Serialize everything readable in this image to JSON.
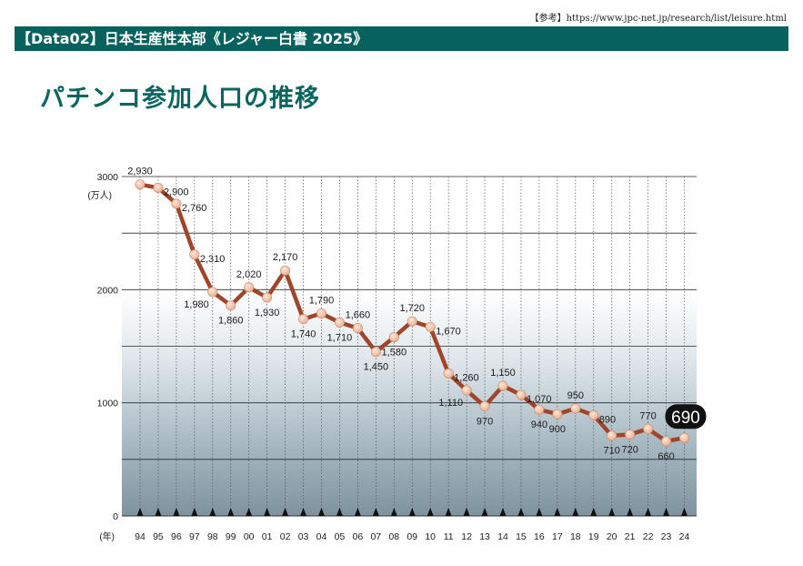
{
  "header": {
    "reference": "【参考】https://www.jpc-net.jp/research/list/leisure.html",
    "banner": "【Data02】日本生産性本部《レジャー白書 2025》",
    "page_title": "パチンコ参加人口の推移"
  },
  "colors": {
    "banner_bg": "#07625e",
    "title": "#0b6660",
    "line": "#a0442a",
    "marker": "#f2c4a8",
    "highlight_bg": "#111111"
  },
  "chart_data": {
    "type": "line",
    "title": "",
    "xlabel": "(年)",
    "ylabel": "(万人)",
    "ylim": [
      0,
      3000
    ],
    "yticks": [
      "0",
      "1000",
      "2000",
      "3000"
    ],
    "grid": true,
    "categories": [
      "94",
      "95",
      "96",
      "97",
      "98",
      "99",
      "00",
      "01",
      "02",
      "03",
      "04",
      "05",
      "06",
      "07",
      "08",
      "09",
      "10",
      "11",
      "12",
      "13",
      "14",
      "15",
      "16",
      "17",
      "18",
      "19",
      "20",
      "21",
      "22",
      "23",
      "24"
    ],
    "values": [
      2930,
      2900,
      2760,
      2310,
      1980,
      1860,
      2020,
      1930,
      2170,
      1740,
      1790,
      1710,
      1660,
      1450,
      1580,
      1720,
      1670,
      1260,
      1110,
      970,
      1150,
      1070,
      940,
      900,
      950,
      890,
      710,
      720,
      770,
      660,
      690
    ],
    "value_labels": [
      "2,930",
      "2,900",
      "2,760",
      "2,310",
      "1,980",
      "1,860",
      "2,020",
      "1,930",
      "2,170",
      "1,740",
      "1,790",
      "1,710",
      "1,660",
      "1,450",
      "1,580",
      "1,720",
      "1,670",
      "1,260",
      "1,110",
      "970",
      "1,150",
      "1,070",
      "940",
      "900",
      "950",
      "890",
      "710",
      "720",
      "770",
      "660",
      "690"
    ],
    "label_positions": [
      "above",
      "right",
      "right",
      "right",
      "left",
      "below",
      "above",
      "below",
      "above",
      "below",
      "above",
      "below",
      "above",
      "below",
      "below",
      "above",
      "right",
      "right",
      "left",
      "below",
      "above",
      "right",
      "below",
      "below",
      "above",
      "right",
      "below",
      "below",
      "above",
      "below",
      "highlight"
    ]
  }
}
